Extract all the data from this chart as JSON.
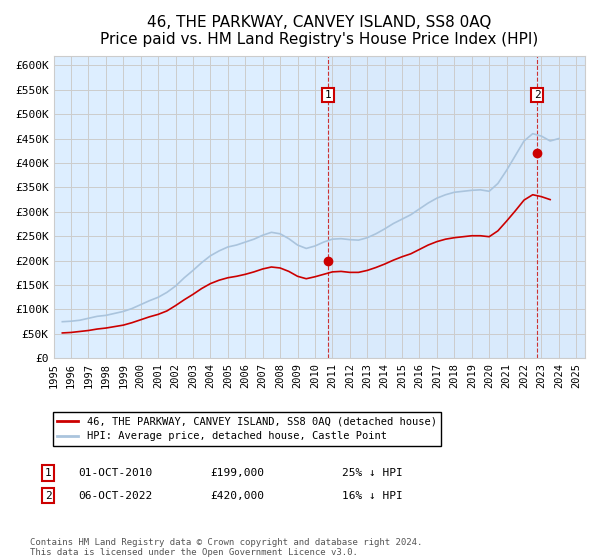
{
  "title": "46, THE PARKWAY, CANVEY ISLAND, SS8 0AQ",
  "subtitle": "Price paid vs. HM Land Registry's House Price Index (HPI)",
  "title_fontsize": 11,
  "subtitle_fontsize": 10,
  "ylabel_ticks": [
    "£0",
    "£50K",
    "£100K",
    "£150K",
    "£200K",
    "£250K",
    "£300K",
    "£350K",
    "£400K",
    "£450K",
    "£500K",
    "£550K",
    "£600K"
  ],
  "ytick_values": [
    0,
    50000,
    100000,
    150000,
    200000,
    250000,
    300000,
    350000,
    400000,
    450000,
    500000,
    550000,
    600000
  ],
  "ylim": [
    0,
    620000
  ],
  "xlim_start": 1995.0,
  "xlim_end": 2025.5,
  "xtick_years": [
    1995,
    1996,
    1997,
    1998,
    1999,
    2000,
    2001,
    2002,
    2003,
    2004,
    2005,
    2006,
    2007,
    2008,
    2009,
    2010,
    2011,
    2012,
    2013,
    2014,
    2015,
    2016,
    2017,
    2018,
    2019,
    2020,
    2021,
    2022,
    2023,
    2024,
    2025
  ],
  "hpi_color": "#aac4dd",
  "price_color": "#cc0000",
  "marker_color": "#cc0000",
  "background_color": "#ddeeff",
  "grid_color": "#cccccc",
  "annotation_box_color": "#cc0000",
  "annotation_text_color": "white",
  "sale1_x": 2010.75,
  "sale1_y": 199000,
  "sale1_label": "1",
  "sale2_x": 2022.75,
  "sale2_y": 420000,
  "sale2_label": "2",
  "legend_label_red": "46, THE PARKWAY, CANVEY ISLAND, SS8 0AQ (detached house)",
  "legend_label_blue": "HPI: Average price, detached house, Castle Point",
  "note1_label": "1",
  "note1_date": "01-OCT-2010",
  "note1_price": "£199,000",
  "note1_hpi": "25% ↓ HPI",
  "note2_label": "2",
  "note2_date": "06-OCT-2022",
  "note2_price": "£420,000",
  "note2_hpi": "16% ↓ HPI",
  "footer": "Contains HM Land Registry data © Crown copyright and database right 2024.\nThis data is licensed under the Open Government Licence v3.0.",
  "hpi_data": {
    "years": [
      1995.5,
      1996.0,
      1996.5,
      1997.0,
      1997.5,
      1998.0,
      1998.5,
      1999.0,
      1999.5,
      2000.0,
      2000.5,
      2001.0,
      2001.5,
      2002.0,
      2002.5,
      2003.0,
      2003.5,
      2004.0,
      2004.5,
      2005.0,
      2005.5,
      2006.0,
      2006.5,
      2007.0,
      2007.5,
      2008.0,
      2008.5,
      2009.0,
      2009.5,
      2010.0,
      2010.5,
      2011.0,
      2011.5,
      2012.0,
      2012.5,
      2013.0,
      2013.5,
      2014.0,
      2014.5,
      2015.0,
      2015.5,
      2016.0,
      2016.5,
      2017.0,
      2017.5,
      2018.0,
      2018.5,
      2019.0,
      2019.5,
      2020.0,
      2020.5,
      2021.0,
      2021.5,
      2022.0,
      2022.5,
      2023.0,
      2023.5,
      2024.0
    ],
    "values": [
      75000,
      76000,
      78000,
      82000,
      86000,
      88000,
      92000,
      96000,
      102000,
      110000,
      118000,
      125000,
      135000,
      148000,
      165000,
      180000,
      196000,
      210000,
      220000,
      228000,
      232000,
      238000,
      244000,
      252000,
      258000,
      255000,
      245000,
      232000,
      225000,
      230000,
      238000,
      244000,
      245000,
      243000,
      242000,
      247000,
      255000,
      265000,
      276000,
      285000,
      294000,
      306000,
      318000,
      328000,
      335000,
      340000,
      342000,
      344000,
      345000,
      342000,
      358000,
      385000,
      415000,
      445000,
      460000,
      455000,
      445000,
      450000
    ]
  },
  "price_data": {
    "years": [
      1995.5,
      1996.0,
      1996.5,
      1997.0,
      1997.5,
      1998.0,
      1998.5,
      1999.0,
      1999.5,
      2000.0,
      2000.5,
      2001.0,
      2001.5,
      2002.0,
      2002.5,
      2003.0,
      2003.5,
      2004.0,
      2004.5,
      2005.0,
      2005.5,
      2006.0,
      2006.5,
      2007.0,
      2007.5,
      2008.0,
      2008.5,
      2009.0,
      2009.5,
      2010.0,
      2010.5,
      2011.0,
      2011.5,
      2012.0,
      2012.5,
      2013.0,
      2013.5,
      2014.0,
      2014.5,
      2015.0,
      2015.5,
      2016.0,
      2016.5,
      2017.0,
      2017.5,
      2018.0,
      2018.5,
      2019.0,
      2019.5,
      2020.0,
      2020.5,
      2021.0,
      2021.5,
      2022.0,
      2022.5,
      2023.0,
      2023.5
    ],
    "values": [
      52000,
      53000,
      55000,
      57000,
      60000,
      62000,
      65000,
      68000,
      73000,
      79000,
      85000,
      90000,
      97000,
      108000,
      120000,
      131000,
      143000,
      153000,
      160000,
      165000,
      168000,
      172000,
      177000,
      183000,
      187000,
      185000,
      178000,
      168000,
      163000,
      167000,
      172000,
      177000,
      178000,
      176000,
      176000,
      180000,
      186000,
      193000,
      201000,
      208000,
      214000,
      223000,
      232000,
      239000,
      244000,
      247000,
      249000,
      251000,
      251000,
      249000,
      261000,
      281000,
      302000,
      324000,
      335000,
      331000,
      325000
    ]
  }
}
